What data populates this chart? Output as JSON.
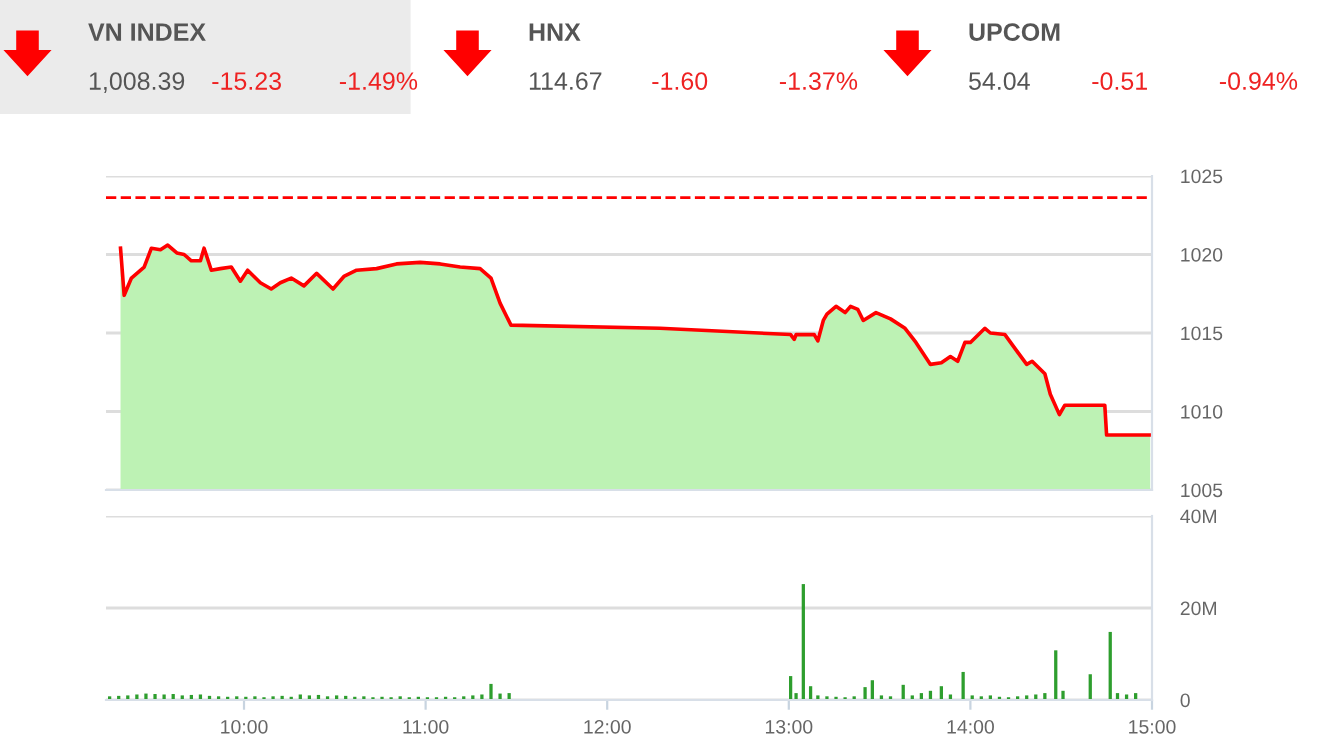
{
  "chart_data": [
    {
      "type": "other",
      "title": "VN INDEX",
      "annotations": [
        "1,008.39",
        "-15.23",
        "-1.49%"
      ]
    },
    {
      "type": "other",
      "title": "HNX",
      "annotations": [
        "114.67",
        "-1.60",
        "-1.37%"
      ]
    },
    {
      "type": "other",
      "title": "UPCOM",
      "annotations": [
        "54.04",
        "-0.51",
        "-0.94%"
      ]
    },
    {
      "type": "area",
      "xlim": [
        9.24,
        15.0
      ],
      "ylim": [
        1005,
        1025
      ],
      "yticks": [
        1005,
        1010,
        1015,
        1020,
        1025
      ],
      "grid": "y",
      "tick_labels": "y",
      "ref_lines": [
        {
          "axis": "y",
          "value": 1023.62,
          "color": "#ff0000",
          "line_style": "dashed"
        }
      ],
      "series": [
        {
          "color": "#bdf2b4",
          "x": [
            9.32,
            9.34,
            9.38,
            9.45,
            9.49,
            9.54,
            9.58,
            9.63,
            9.67,
            9.71,
            9.76,
            9.78,
            9.82,
            9.87,
            9.93,
            9.98,
            10.02,
            10.09,
            10.15,
            10.2,
            10.26,
            10.33,
            10.4,
            10.49,
            10.55,
            10.62,
            10.73,
            10.84,
            10.97,
            11.08,
            11.19,
            11.3,
            11.36,
            11.41,
            11.47,
            12.29,
            13.01,
            13.03,
            13.04,
            13.14,
            13.16,
            13.19,
            13.21,
            13.26,
            13.31,
            13.34,
            13.38,
            13.41,
            13.48,
            13.56,
            13.64,
            13.7,
            13.78,
            13.84,
            13.89,
            13.93,
            13.97,
            14.0,
            14.08,
            14.11,
            14.19,
            14.24,
            14.31,
            14.34,
            14.41,
            14.44,
            14.49,
            14.52,
            14.74,
            14.75,
            14.99
          ],
          "values": [
            1020.4,
            1017.4,
            1018.5,
            1019.2,
            1020.4,
            1020.3,
            1020.6,
            1020.1,
            1020.0,
            1019.6,
            1019.6,
            1020.4,
            1019.0,
            1019.1,
            1019.2,
            1018.3,
            1019.0,
            1018.2,
            1017.8,
            1018.2,
            1018.5,
            1018.0,
            1018.8,
            1017.8,
            1018.6,
            1019.0,
            1019.1,
            1019.4,
            1019.5,
            1019.4,
            1019.2,
            1019.1,
            1018.5,
            1016.9,
            1015.5,
            1015.3,
            1014.9,
            1014.6,
            1014.9,
            1014.9,
            1014.5,
            1015.8,
            1016.2,
            1016.7,
            1016.3,
            1016.7,
            1016.5,
            1015.8,
            1016.3,
            1015.9,
            1015.3,
            1014.4,
            1013.0,
            1013.1,
            1013.5,
            1013.2,
            1014.4,
            1014.4,
            1015.3,
            1015.0,
            1014.9,
            1014.1,
            1013.0,
            1013.2,
            1012.4,
            1011.1,
            1009.8,
            1010.4,
            1010.4,
            1008.5,
            1008.5
          ]
        },
        {
          "type": "line",
          "color": "#ff0000",
          "x": [
            9.32,
            9.34,
            9.38,
            9.45,
            9.49,
            9.54,
            9.58,
            9.63,
            9.67,
            9.71,
            9.76,
            9.78,
            9.82,
            9.87,
            9.93,
            9.98,
            10.02,
            10.09,
            10.15,
            10.2,
            10.26,
            10.33,
            10.4,
            10.49,
            10.55,
            10.62,
            10.73,
            10.84,
            10.97,
            11.08,
            11.19,
            11.3,
            11.36,
            11.41,
            11.47,
            12.29,
            13.01,
            13.03,
            13.04,
            13.14,
            13.16,
            13.19,
            13.21,
            13.26,
            13.31,
            13.34,
            13.38,
            13.41,
            13.48,
            13.56,
            13.64,
            13.7,
            13.78,
            13.84,
            13.89,
            13.93,
            13.97,
            14.0,
            14.08,
            14.11,
            14.19,
            14.24,
            14.31,
            14.34,
            14.41,
            14.44,
            14.49,
            14.52,
            14.74,
            14.75,
            14.99
          ],
          "values": [
            1020.4,
            1017.4,
            1018.5,
            1019.2,
            1020.4,
            1020.3,
            1020.6,
            1020.1,
            1020.0,
            1019.6,
            1019.6,
            1020.4,
            1019.0,
            1019.1,
            1019.2,
            1018.3,
            1019.0,
            1018.2,
            1017.8,
            1018.2,
            1018.5,
            1018.0,
            1018.8,
            1017.8,
            1018.6,
            1019.0,
            1019.1,
            1019.4,
            1019.5,
            1019.4,
            1019.2,
            1019.1,
            1018.5,
            1016.9,
            1015.5,
            1015.3,
            1014.9,
            1014.6,
            1014.9,
            1014.9,
            1014.5,
            1015.8,
            1016.2,
            1016.7,
            1016.3,
            1016.7,
            1016.5,
            1015.8,
            1016.3,
            1015.9,
            1015.3,
            1014.4,
            1013.0,
            1013.1,
            1013.5,
            1013.2,
            1014.4,
            1014.4,
            1015.3,
            1015.0,
            1014.9,
            1014.1,
            1013.0,
            1013.2,
            1012.4,
            1011.1,
            1009.8,
            1010.4,
            1010.4,
            1008.5,
            1008.5
          ]
        }
      ]
    },
    {
      "type": "bar",
      "xlim": [
        9.24,
        15.0
      ],
      "ylim": [
        0,
        40
      ],
      "yticks": [
        {
          "value": 0,
          "label": "0"
        },
        {
          "value": 20,
          "label": "20M"
        },
        {
          "value": 40,
          "label": "40M"
        }
      ],
      "xticks": [
        {
          "value": 10,
          "label": "10:00"
        },
        {
          "value": 11,
          "label": "11:00"
        },
        {
          "value": 12,
          "label": "12:00"
        },
        {
          "value": 13,
          "label": "13:00"
        },
        {
          "value": 14,
          "label": "14:00"
        },
        {
          "value": 15,
          "label": "15:00"
        }
      ],
      "grid": "y",
      "series": [
        {
          "color": "#2e9e2e",
          "x": [
            9.26,
            9.31,
            9.36,
            9.41,
            9.46,
            9.51,
            9.56,
            9.61,
            9.66,
            9.71,
            9.76,
            9.81,
            9.86,
            9.91,
            9.96,
            10.01,
            10.06,
            10.11,
            10.16,
            10.21,
            10.26,
            10.31,
            10.36,
            10.41,
            10.46,
            10.51,
            10.56,
            10.61,
            10.66,
            10.71,
            10.76,
            10.81,
            10.86,
            10.91,
            10.96,
            11.01,
            11.06,
            11.11,
            11.16,
            11.21,
            11.26,
            11.31,
            11.36,
            11.41,
            11.46,
            13.01,
            13.04,
            13.08,
            13.12,
            13.16,
            13.21,
            13.26,
            13.31,
            13.36,
            13.42,
            13.46,
            13.51,
            13.56,
            13.63,
            13.68,
            13.73,
            13.78,
            13.84,
            13.89,
            13.96,
            14.01,
            14.06,
            14.11,
            14.16,
            14.21,
            14.26,
            14.31,
            14.36,
            14.41,
            14.47,
            14.51,
            14.56,
            14.61,
            14.66,
            14.72,
            14.77,
            14.81,
            14.86,
            14.91
          ],
          "values": [
            0.8,
            0.9,
            1.0,
            1.2,
            1.4,
            1.3,
            1.2,
            1.3,
            1.0,
            1.1,
            1.2,
            0.9,
            0.8,
            0.7,
            0.8,
            0.7,
            0.8,
            0.6,
            0.8,
            0.9,
            0.7,
            1.2,
            1.0,
            1.1,
            0.8,
            1.0,
            0.9,
            0.7,
            0.8,
            0.6,
            0.7,
            0.6,
            0.8,
            0.6,
            0.7,
            0.6,
            0.6,
            0.7,
            0.6,
            0.8,
            1.0,
            1.2,
            3.5,
            1.4,
            1.5,
            5.2,
            1.5,
            25.2,
            3.0,
            1.0,
            0.8,
            0.7,
            0.6,
            0.8,
            2.8,
            4.3,
            1.0,
            0.8,
            3.3,
            1.0,
            1.5,
            2.0,
            3.0,
            1.2,
            6.1,
            1.0,
            0.8,
            1.0,
            0.7,
            0.6,
            0.8,
            1.0,
            1.2,
            1.5,
            10.8,
            2.0,
            null,
            null,
            5.6,
            null,
            14.8,
            1.5,
            1.2,
            1.5
          ]
        }
      ]
    }
  ]
}
